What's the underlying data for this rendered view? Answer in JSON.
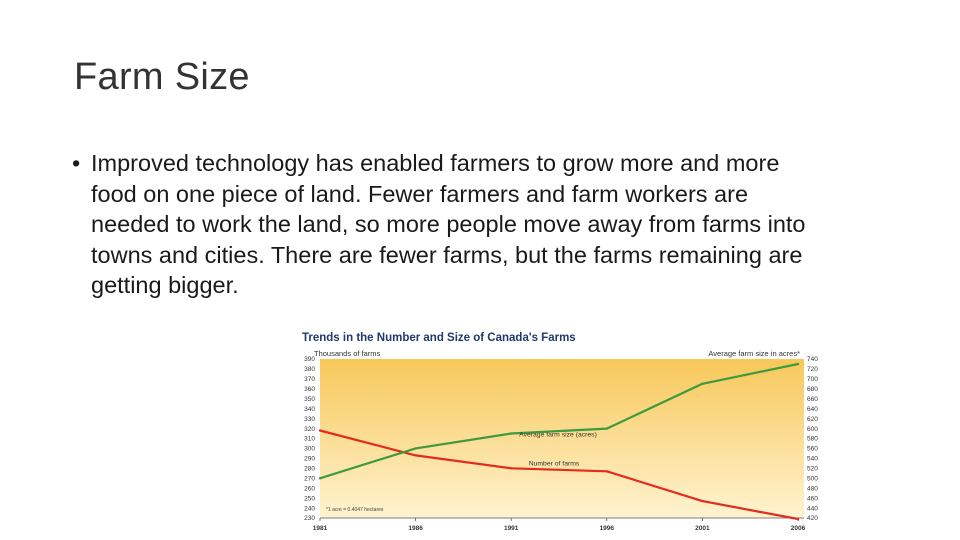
{
  "slide": {
    "title": "Farm Size",
    "bullet_marker": "•",
    "bullet_lines": [
      "Improved technology has enabled farmers to grow more and more",
      "food on one piece of land. Fewer farmers and farm workers are",
      "needed to work the land, so more people move away from farms into",
      "towns and cities. There are fewer farms, but the farms remaining are",
      "getting bigger."
    ]
  },
  "chart_data": {
    "type": "line",
    "title": "Trends in the Number and Size of Canada's Farms",
    "left_axis_label": "Thousands of farms",
    "right_axis_label": "Average farm size in acres*",
    "footnote": "*1 acre = 0.4047 hectares",
    "x": [
      "1981",
      "1986",
      "1991",
      "1996",
      "2001",
      "2006"
    ],
    "left_ylim": [
      230,
      390
    ],
    "left_ticks": [
      390,
      380,
      370,
      360,
      350,
      340,
      330,
      320,
      310,
      300,
      290,
      280,
      270,
      260,
      250,
      240,
      230
    ],
    "right_ylim": [
      420,
      740
    ],
    "right_ticks": [
      740,
      720,
      700,
      680,
      660,
      640,
      620,
      600,
      580,
      560,
      540,
      520,
      500,
      480,
      460,
      440,
      420
    ],
    "series": [
      {
        "name": "Number of farms",
        "axis": "left",
        "color": "#e32b1e",
        "values": [
          318,
          293,
          280,
          277,
          247,
          229
        ]
      },
      {
        "name": "Average farm size (acres)",
        "axis": "right",
        "color": "#3e9a3c",
        "values": [
          500,
          560,
          590,
          600,
          690,
          730
        ]
      }
    ],
    "background_gradient": [
      "#f7c85a",
      "#fff3d0"
    ],
    "grid": false
  }
}
